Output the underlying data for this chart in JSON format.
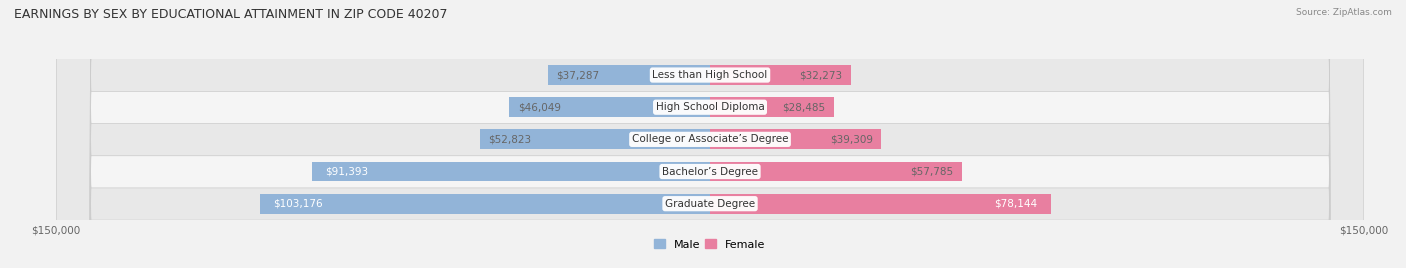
{
  "title": "EARNINGS BY SEX BY EDUCATIONAL ATTAINMENT IN ZIP CODE 40207",
  "source": "Source: ZipAtlas.com",
  "categories": [
    "Less than High School",
    "High School Diploma",
    "College or Associate’s Degree",
    "Bachelor’s Degree",
    "Graduate Degree"
  ],
  "male_values": [
    37287,
    46049,
    52823,
    91393,
    103176
  ],
  "female_values": [
    32273,
    28485,
    39309,
    57785,
    78144
  ],
  "male_color": "#92b4d8",
  "female_color": "#e87fa0",
  "male_label": "Male",
  "female_label": "Female",
  "axis_max": 150000,
  "bar_height": 0.62,
  "background_color": "#f2f2f2",
  "label_fontsize": 7.5,
  "title_fontsize": 9,
  "legend_fontsize": 8,
  "inside_label_color": "#ffffff",
  "outside_label_color": "#666666",
  "inside_threshold": 60000
}
